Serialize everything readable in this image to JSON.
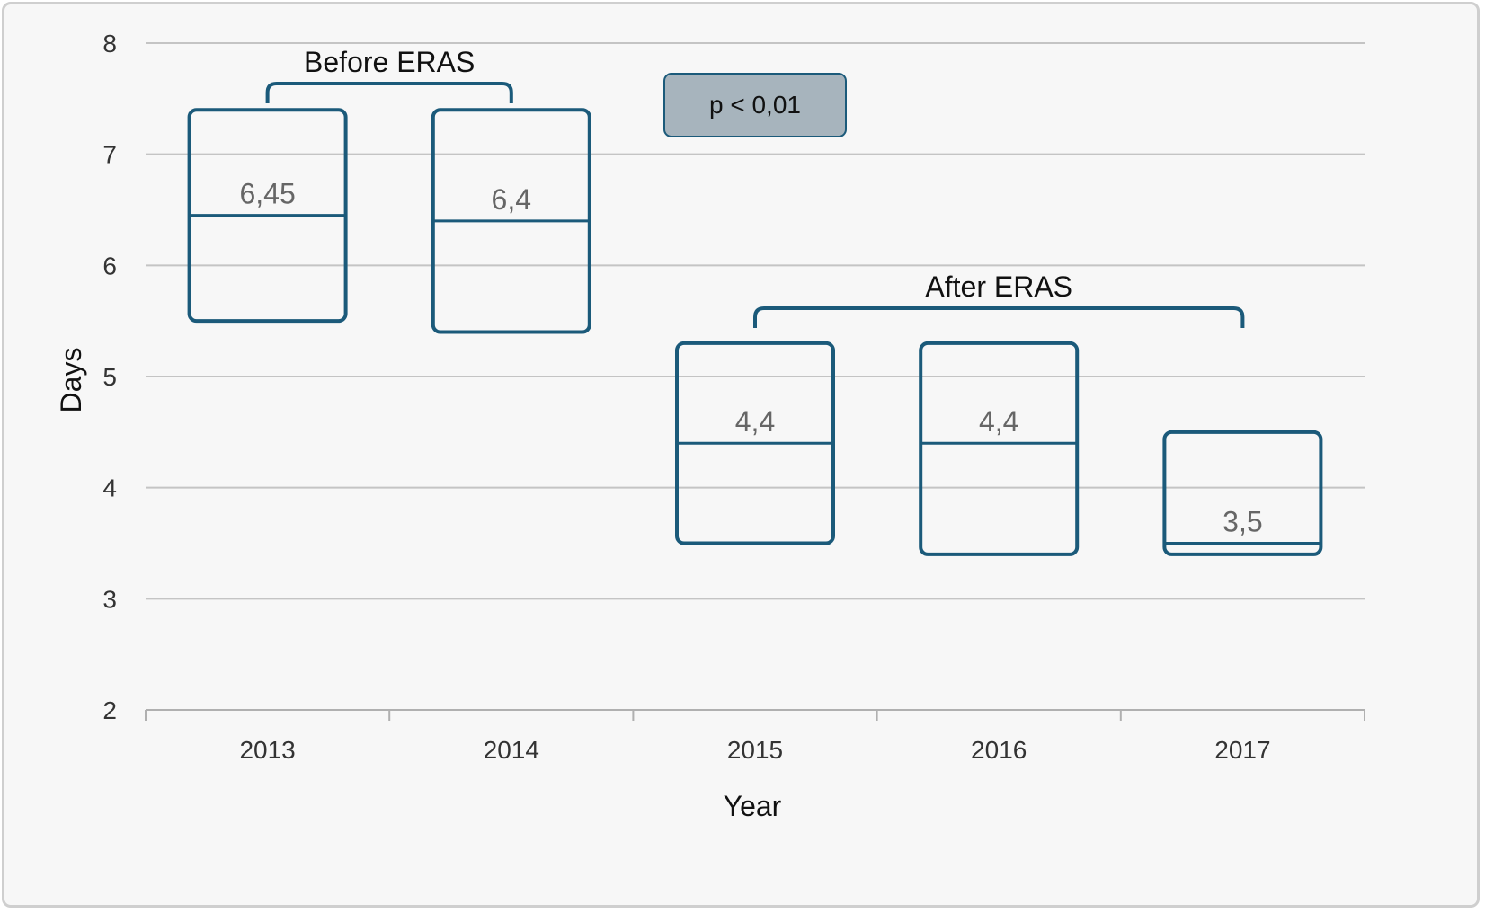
{
  "chart_data": {
    "type": "box",
    "title": "",
    "xlabel": "Year",
    "ylabel": "Days",
    "ylim": [
      2,
      8
    ],
    "yticks": [
      "2",
      "3",
      "4",
      "5",
      "6",
      "7",
      "8"
    ],
    "grid": true,
    "categories": [
      "2013",
      "2014",
      "2015",
      "2016",
      "2017"
    ],
    "boxes": [
      {
        "category": "2013",
        "q1": 5.5,
        "median": 6.45,
        "q3": 7.4,
        "label": "6,45"
      },
      {
        "category": "2014",
        "q1": 5.4,
        "median": 6.4,
        "q3": 7.4,
        "label": "6,4"
      },
      {
        "category": "2015",
        "q1": 3.5,
        "median": 4.4,
        "q3": 5.3,
        "label": "4,4"
      },
      {
        "category": "2016",
        "q1": 3.4,
        "median": 4.4,
        "q3": 5.3,
        "label": "4,4"
      },
      {
        "category": "2017",
        "q1": 3.4,
        "median": 3.5,
        "q3": 4.5,
        "label": "3,5"
      }
    ],
    "annotations": {
      "before_label": "Before ERAS",
      "before_span": [
        "2013",
        "2014"
      ],
      "after_label": "After ERAS",
      "after_span": [
        "2015",
        "2017"
      ],
      "p_value": "p < 0,01"
    },
    "colors": {
      "box_stroke": "#1b5a7a",
      "grid": "#c4c4c4",
      "pbox_fill": "#a7b4bd",
      "background": "#f7f7f7"
    }
  }
}
